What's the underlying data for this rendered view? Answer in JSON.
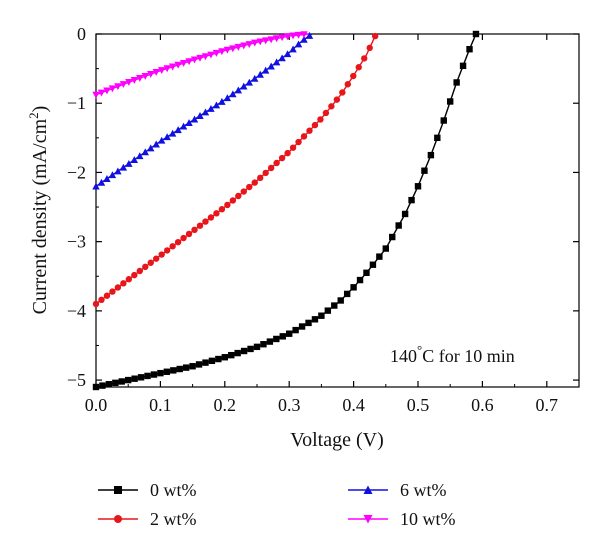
{
  "chart_data": {
    "type": "line",
    "xlabel": "Voltage (V)",
    "ylabel": "Current density (mA/cm",
    "ylabel_sup": "2",
    "ylabel_tail": ")",
    "xlim": [
      0,
      0.75
    ],
    "ylim": [
      -5.1,
      0
    ],
    "xticks": [
      "0.0",
      "0.1",
      "0.2",
      "0.3",
      "0.4",
      "0.5",
      "0.6",
      "0.7"
    ],
    "yticks": [
      "0",
      "−1",
      "−2",
      "−3",
      "−4",
      "−5"
    ],
    "annotation": "140°C for 10 min",
    "annotation_parts": {
      "value": "140",
      "unit_sup": "°",
      "rest": "C for 10 min"
    },
    "grid": false,
    "legend_position": "bottom",
    "series": [
      {
        "name": "0 wt%",
        "color": "#000000",
        "marker": "square",
        "x": [
          0.0,
          0.05,
          0.1,
          0.15,
          0.2,
          0.25,
          0.3,
          0.35,
          0.38,
          0.4,
          0.42,
          0.45,
          0.48,
          0.5,
          0.52,
          0.54,
          0.56,
          0.58,
          0.59
        ],
        "y": [
          -5.1,
          -5.0,
          -4.9,
          -4.8,
          -4.67,
          -4.52,
          -4.33,
          -4.07,
          -3.85,
          -3.66,
          -3.45,
          -3.1,
          -2.6,
          -2.2,
          -1.75,
          -1.25,
          -0.7,
          -0.22,
          0.0
        ]
      },
      {
        "name": "2 wt%",
        "color": "#e8151b",
        "marker": "circle",
        "x": [
          0.0,
          0.05,
          0.1,
          0.15,
          0.2,
          0.25,
          0.3,
          0.35,
          0.38,
          0.4,
          0.42,
          0.43,
          0.435
        ],
        "y": [
          -3.9,
          -3.55,
          -3.2,
          -2.85,
          -2.5,
          -2.12,
          -1.7,
          -1.22,
          -0.88,
          -0.6,
          -0.3,
          -0.1,
          0.0
        ]
      },
      {
        "name": "6 wt%",
        "color": "#1010e0",
        "marker": "triangle-up",
        "x": [
          0.0,
          0.05,
          0.1,
          0.15,
          0.2,
          0.25,
          0.3,
          0.32,
          0.335
        ],
        "y": [
          -2.2,
          -1.88,
          -1.55,
          -1.25,
          -0.95,
          -0.62,
          -0.27,
          -0.1,
          0.0
        ]
      },
      {
        "name": "10 wt%",
        "color": "#ff00ff",
        "marker": "triangle-down",
        "x": [
          0.0,
          0.05,
          0.1,
          0.15,
          0.2,
          0.25,
          0.3,
          0.33
        ],
        "y": [
          -0.88,
          -0.7,
          -0.53,
          -0.38,
          -0.24,
          -0.12,
          -0.03,
          0.0
        ]
      }
    ]
  }
}
